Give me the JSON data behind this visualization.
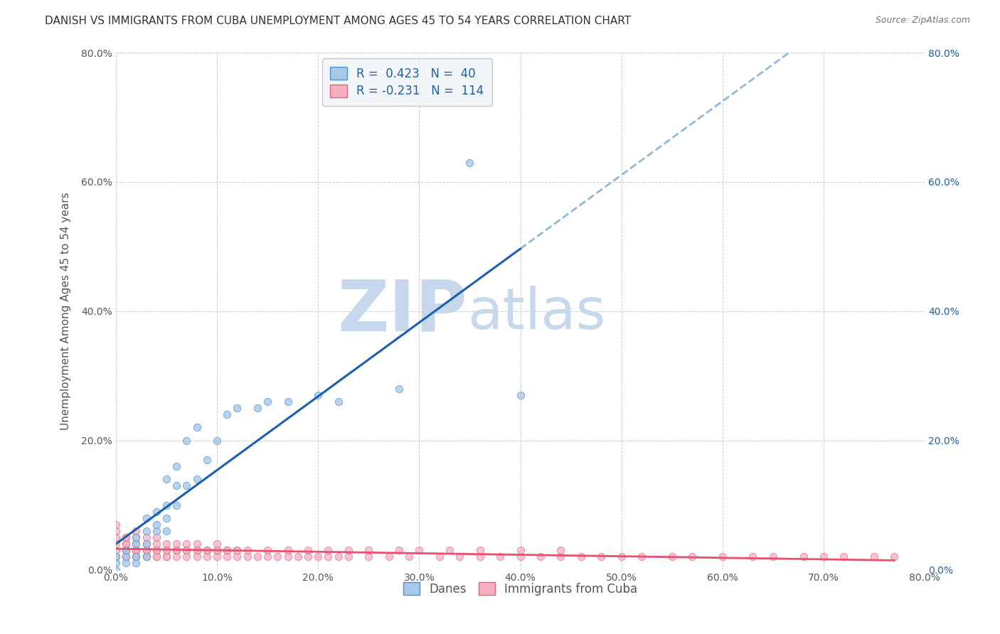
{
  "title": "DANISH VS IMMIGRANTS FROM CUBA UNEMPLOYMENT AMONG AGES 45 TO 54 YEARS CORRELATION CHART",
  "source": "Source: ZipAtlas.com",
  "ylabel": "Unemployment Among Ages 45 to 54 years",
  "xlim": [
    0.0,
    0.8
  ],
  "ylim": [
    0.0,
    0.8
  ],
  "xticks": [
    0.0,
    0.1,
    0.2,
    0.3,
    0.4,
    0.5,
    0.6,
    0.7,
    0.8
  ],
  "yticks": [
    0.0,
    0.2,
    0.4,
    0.6,
    0.8
  ],
  "xticklabels": [
    "0.0%",
    "10.0%",
    "20.0%",
    "30.0%",
    "40.0%",
    "50.0%",
    "60.0%",
    "70.0%",
    "80.0%"
  ],
  "yticklabels": [
    "0.0%",
    "20.0%",
    "40.0%",
    "60.0%",
    "80.0%"
  ],
  "danes_R": 0.423,
  "danes_N": 40,
  "cuba_R": -0.231,
  "cuba_N": 114,
  "danes_color": "#a8c8e8",
  "danes_edge_color": "#5090c8",
  "danes_line_color": "#1a5fb0",
  "danes_line_dash_color": "#90b8d8",
  "cuba_color": "#f8b0c0",
  "cuba_edge_color": "#e06080",
  "cuba_line_color": "#e85070",
  "danes_scatter_x": [
    0.0,
    0.0,
    0.0,
    0.01,
    0.01,
    0.01,
    0.02,
    0.02,
    0.02,
    0.02,
    0.03,
    0.03,
    0.03,
    0.03,
    0.04,
    0.04,
    0.04,
    0.05,
    0.05,
    0.05,
    0.05,
    0.06,
    0.06,
    0.06,
    0.07,
    0.07,
    0.08,
    0.08,
    0.09,
    0.1,
    0.11,
    0.12,
    0.14,
    0.15,
    0.17,
    0.2,
    0.22,
    0.28,
    0.35,
    0.4
  ],
  "danes_scatter_y": [
    0.0,
    0.01,
    0.02,
    0.01,
    0.02,
    0.03,
    0.01,
    0.02,
    0.04,
    0.05,
    0.02,
    0.04,
    0.06,
    0.08,
    0.06,
    0.07,
    0.09,
    0.06,
    0.08,
    0.1,
    0.14,
    0.1,
    0.13,
    0.16,
    0.13,
    0.2,
    0.14,
    0.22,
    0.17,
    0.2,
    0.24,
    0.25,
    0.25,
    0.26,
    0.26,
    0.27,
    0.26,
    0.28,
    0.63,
    0.27
  ],
  "cuba_scatter_x": [
    0.0,
    0.0,
    0.0,
    0.0,
    0.0,
    0.01,
    0.01,
    0.01,
    0.01,
    0.01,
    0.01,
    0.01,
    0.01,
    0.02,
    0.02,
    0.02,
    0.02,
    0.02,
    0.02,
    0.02,
    0.03,
    0.03,
    0.03,
    0.03,
    0.03,
    0.03,
    0.04,
    0.04,
    0.04,
    0.04,
    0.04,
    0.05,
    0.05,
    0.05,
    0.05,
    0.06,
    0.06,
    0.06,
    0.07,
    0.07,
    0.07,
    0.08,
    0.08,
    0.08,
    0.09,
    0.09,
    0.1,
    0.1,
    0.1,
    0.11,
    0.11,
    0.12,
    0.12,
    0.13,
    0.14,
    0.15,
    0.16,
    0.17,
    0.18,
    0.19,
    0.2,
    0.21,
    0.22,
    0.23,
    0.25,
    0.27,
    0.29,
    0.32,
    0.34,
    0.36,
    0.38,
    0.4,
    0.42,
    0.44,
    0.46,
    0.48,
    0.5,
    0.52,
    0.55,
    0.57,
    0.6,
    0.63,
    0.65,
    0.68,
    0.7,
    0.72,
    0.75,
    0.77,
    0.0,
    0.01,
    0.02,
    0.03,
    0.04,
    0.05,
    0.06,
    0.07,
    0.08,
    0.09,
    0.1,
    0.11,
    0.12,
    0.13,
    0.15,
    0.17,
    0.19,
    0.21,
    0.23,
    0.25,
    0.28,
    0.3,
    0.33,
    0.36,
    0.4,
    0.44
  ],
  "cuba_scatter_y": [
    0.02,
    0.03,
    0.04,
    0.05,
    0.06,
    0.02,
    0.03,
    0.04,
    0.05,
    0.02,
    0.03,
    0.04,
    0.05,
    0.02,
    0.03,
    0.04,
    0.05,
    0.06,
    0.02,
    0.03,
    0.02,
    0.03,
    0.04,
    0.05,
    0.02,
    0.03,
    0.02,
    0.03,
    0.04,
    0.05,
    0.02,
    0.02,
    0.03,
    0.04,
    0.02,
    0.02,
    0.03,
    0.04,
    0.02,
    0.03,
    0.04,
    0.02,
    0.03,
    0.04,
    0.02,
    0.03,
    0.02,
    0.03,
    0.04,
    0.02,
    0.03,
    0.02,
    0.03,
    0.02,
    0.02,
    0.02,
    0.02,
    0.02,
    0.02,
    0.02,
    0.02,
    0.02,
    0.02,
    0.02,
    0.02,
    0.02,
    0.02,
    0.02,
    0.02,
    0.02,
    0.02,
    0.02,
    0.02,
    0.02,
    0.02,
    0.02,
    0.02,
    0.02,
    0.02,
    0.02,
    0.02,
    0.02,
    0.02,
    0.02,
    0.02,
    0.02,
    0.02,
    0.02,
    0.07,
    0.03,
    0.03,
    0.03,
    0.03,
    0.03,
    0.03,
    0.03,
    0.03,
    0.03,
    0.03,
    0.03,
    0.03,
    0.03,
    0.03,
    0.03,
    0.03,
    0.03,
    0.03,
    0.03,
    0.03,
    0.03,
    0.03,
    0.03,
    0.03,
    0.03
  ],
  "watermark_zip": "ZIP",
  "watermark_atlas": "atlas",
  "watermark_color": "#c8d8ec",
  "legend_box_color": "#f0f4f8",
  "legend_text_color": "#2060a0",
  "title_fontsize": 11,
  "axis_label_fontsize": 11,
  "tick_fontsize": 10,
  "legend_fontsize": 12,
  "background_color": "#ffffff",
  "grid_color": "#cccccc"
}
